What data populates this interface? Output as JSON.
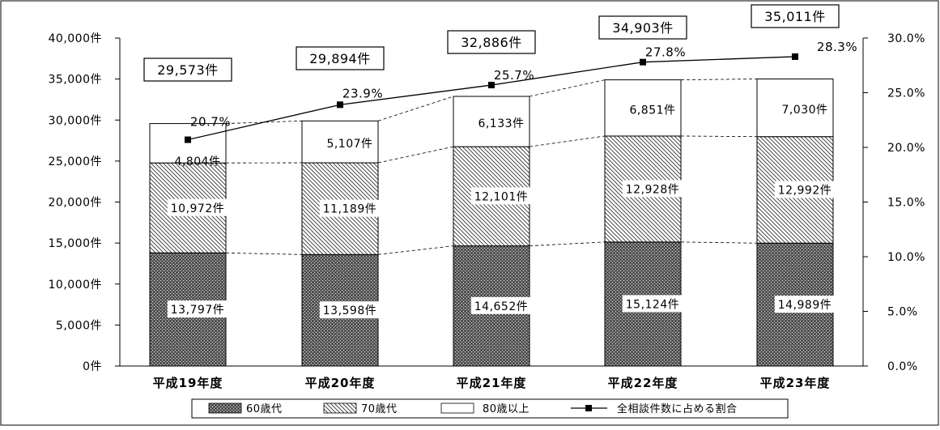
{
  "chart_data": {
    "type": "bar",
    "stacked": true,
    "categories": [
      "平成19年度",
      "平成20年度",
      "平成21年度",
      "平成22年度",
      "平成23年度"
    ],
    "series": [
      {
        "name": "60歳代",
        "values": [
          13797,
          13598,
          14652,
          15124,
          14989
        ],
        "labels": [
          "13,797件",
          "13,598件",
          "14,652件",
          "15,124件",
          "14,989件"
        ]
      },
      {
        "name": "70歳代",
        "values": [
          10972,
          11189,
          12101,
          12928,
          12992
        ],
        "labels": [
          "10,972件",
          "11,189件",
          "12,101件",
          "12,928件",
          "12,992件"
        ]
      },
      {
        "name": "80歳以上",
        "values": [
          4804,
          5107,
          6133,
          6851,
          7030
        ],
        "labels": [
          "4,804件",
          "5,107件",
          "6,133件",
          "6,851件",
          "7,030件"
        ]
      }
    ],
    "totals": [
      29573,
      29894,
      32886,
      34903,
      35011
    ],
    "total_labels": [
      "29,573件",
      "29,894件",
      "32,886件",
      "34,903件",
      "35,011件"
    ],
    "line_series": {
      "name": "全相談件数に占める割合",
      "values": [
        20.7,
        23.9,
        25.7,
        27.8,
        28.3
      ],
      "labels": [
        "20.7%",
        "23.9%",
        "25.7%",
        "27.8%",
        "28.3%"
      ]
    },
    "y_left": {
      "min": 0,
      "max": 40000,
      "ticks": [
        "0件",
        "5,000件",
        "10,000件",
        "15,000件",
        "20,000件",
        "25,000件",
        "30,000件",
        "35,000件",
        "40,000件"
      ]
    },
    "y_right": {
      "min": 0,
      "max": 30,
      "ticks": [
        "0.0%",
        "5.0%",
        "10.0%",
        "15.0%",
        "20.0%",
        "25.0%",
        "30.0%"
      ]
    },
    "legend_position": "bottom",
    "colors": {
      "s60": "#5a5a5a",
      "s70": "#ffffff",
      "s80": "#ffffff",
      "line": "#000000"
    }
  }
}
